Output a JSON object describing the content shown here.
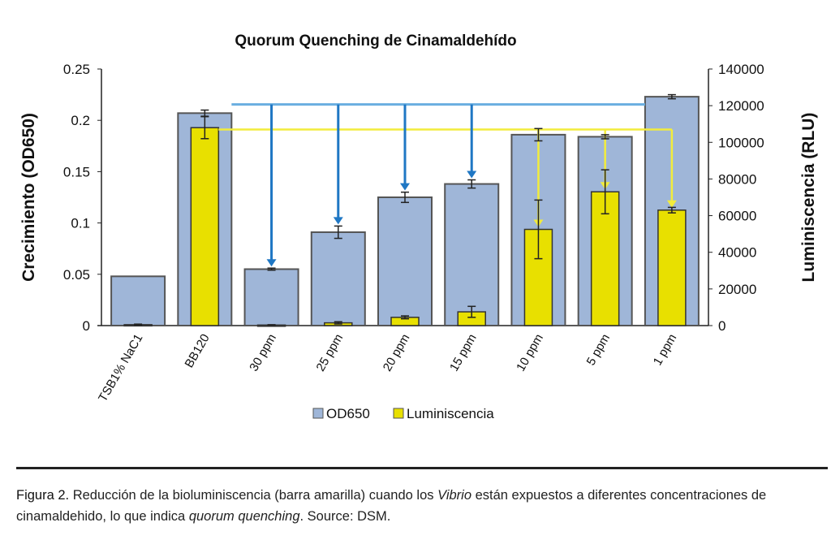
{
  "chart_data": {
    "type": "bar",
    "title": "Quorum Quenching de Cinamaldehído",
    "categories": [
      "TSB1% NaC1",
      "BB120",
      "30 ppm",
      "25 ppm",
      "20 ppm",
      "15 ppm",
      "10 ppm",
      "5 ppm",
      "1 ppm"
    ],
    "ylabel": "Crecimiento (OD650)",
    "y2label": "Luminiscencia (RLU)",
    "ylim": [
      0,
      0.25
    ],
    "y2lim": [
      0,
      140000
    ],
    "yticks": [
      "0",
      "0.05",
      "0.1",
      "0.15",
      "0.2",
      "0.25"
    ],
    "y2ticks": [
      "0",
      "20000",
      "40000",
      "60000",
      "80000",
      "100000",
      "120000",
      "140000"
    ],
    "legend_position": "bottom",
    "grid": false,
    "series": [
      {
        "name": "OD650",
        "axis": "left",
        "color": "#9fb6d8",
        "values": [
          0.048,
          0.207,
          0.055,
          0.091,
          0.125,
          0.138,
          0.186,
          0.184,
          0.223
        ],
        "errors": [
          0,
          0.003,
          0.001,
          0.006,
          0.005,
          0.004,
          0.006,
          0.002,
          0.002
        ]
      },
      {
        "name": "Luminiscencia",
        "axis": "right",
        "color": "#e8e000",
        "values": [
          500,
          108000,
          300,
          1500,
          4500,
          7500,
          52500,
          73000,
          63000
        ],
        "errors": [
          300,
          6000,
          200,
          600,
          800,
          3000,
          16000,
          12000,
          1500
        ]
      }
    ],
    "annotations": {
      "blue_reference_od": 0.2155,
      "blue_arrows_to": [
        "30 ppm",
        "25 ppm",
        "20 ppm",
        "15 ppm"
      ],
      "blue_color": "#1f77c4",
      "yellow_reference_rlu": 107000,
      "yellow_arrows_to": [
        "10 ppm",
        "5 ppm",
        "1 ppm"
      ],
      "yellow_color": "#f2ec3c"
    }
  },
  "caption": {
    "label": "Figura 2.",
    "part1": " Reducción de la bioluminiscencia (barra amarilla) cuando los ",
    "italic1": "Vibrio",
    "part2": " están expuestos a diferentes concentraciones de cinamaldehido, lo que indica ",
    "italic2": "quorum quenching",
    "part3": ". Source: DSM."
  }
}
